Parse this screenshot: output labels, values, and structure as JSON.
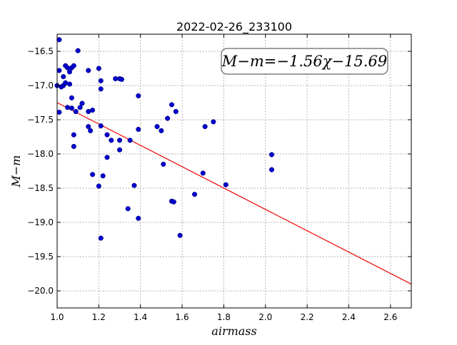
{
  "chart_data": {
    "type": "scatter",
    "title": "2022-02-26_233100",
    "xlabel": "airmass",
    "ylabel": "M−m",
    "annotation": "M−m=−1.56χ−15.69",
    "xlim": [
      1.0,
      2.7
    ],
    "ylim": [
      -20.25,
      -16.25
    ],
    "y_inverted": true,
    "grid": true,
    "xticks": [
      "1.0",
      "1.2",
      "1.4",
      "1.6",
      "1.8",
      "2.0",
      "2.2",
      "2.4",
      "2.6"
    ],
    "yticks": [
      "−16.5",
      "−17.0",
      "−17.5",
      "−18.0",
      "−18.5",
      "−19.0",
      "−19.5",
      "−20.0"
    ],
    "colors": {
      "points": "#0000cc",
      "fit_line": "#ee0000"
    },
    "fit": {
      "slope": -1.56,
      "intercept": -15.69,
      "x_range": [
        1.0,
        2.7
      ]
    },
    "points": [
      [
        1.01,
        -16.33
      ],
      [
        1.01,
        -16.78
      ],
      [
        1.0,
        -17.0
      ],
      [
        1.01,
        -17.39
      ],
      [
        1.02,
        -17.02
      ],
      [
        1.03,
        -16.87
      ],
      [
        1.03,
        -17.0
      ],
      [
        1.04,
        -16.96
      ],
      [
        1.04,
        -16.71
      ],
      [
        1.05,
        -16.74
      ],
      [
        1.05,
        -17.32
      ],
      [
        1.06,
        -16.8
      ],
      [
        1.06,
        -16.98
      ],
      [
        1.07,
        -17.33
      ],
      [
        1.07,
        -17.18
      ],
      [
        1.07,
        -16.74
      ],
      [
        1.08,
        -17.72
      ],
      [
        1.08,
        -17.89
      ],
      [
        1.08,
        -16.71
      ],
      [
        1.09,
        -17.38
      ],
      [
        1.1,
        -16.49
      ],
      [
        1.11,
        -17.32
      ],
      [
        1.12,
        -17.26
      ],
      [
        1.15,
        -16.78
      ],
      [
        1.15,
        -17.38
      ],
      [
        1.15,
        -17.6
      ],
      [
        1.16,
        -17.66
      ],
      [
        1.17,
        -17.36
      ],
      [
        1.17,
        -18.3
      ],
      [
        1.2,
        -16.75
      ],
      [
        1.2,
        -18.47
      ],
      [
        1.21,
        -16.93
      ],
      [
        1.21,
        -17.05
      ],
      [
        1.21,
        -17.59
      ],
      [
        1.21,
        -19.23
      ],
      [
        1.22,
        -18.32
      ],
      [
        1.24,
        -17.72
      ],
      [
        1.24,
        -18.05
      ],
      [
        1.26,
        -17.8
      ],
      [
        1.28,
        -16.9
      ],
      [
        1.3,
        -16.9
      ],
      [
        1.3,
        -17.8
      ],
      [
        1.3,
        -17.94
      ],
      [
        1.31,
        -16.91
      ],
      [
        1.34,
        -18.8
      ],
      [
        1.35,
        -17.8
      ],
      [
        1.37,
        -18.46
      ],
      [
        1.39,
        -17.15
      ],
      [
        1.39,
        -17.64
      ],
      [
        1.39,
        -18.94
      ],
      [
        1.48,
        -17.6
      ],
      [
        1.5,
        -17.66
      ],
      [
        1.51,
        -18.15
      ],
      [
        1.53,
        -17.48
      ],
      [
        1.55,
        -17.28
      ],
      [
        1.55,
        -18.69
      ],
      [
        1.56,
        -18.7
      ],
      [
        1.57,
        -17.38
      ],
      [
        1.59,
        -19.19
      ],
      [
        1.66,
        -18.59
      ],
      [
        1.7,
        -18.28
      ],
      [
        1.71,
        -17.6
      ],
      [
        1.75,
        -17.53
      ],
      [
        1.81,
        -18.45
      ],
      [
        2.03,
        -18.01
      ],
      [
        2.03,
        -18.23
      ]
    ]
  }
}
